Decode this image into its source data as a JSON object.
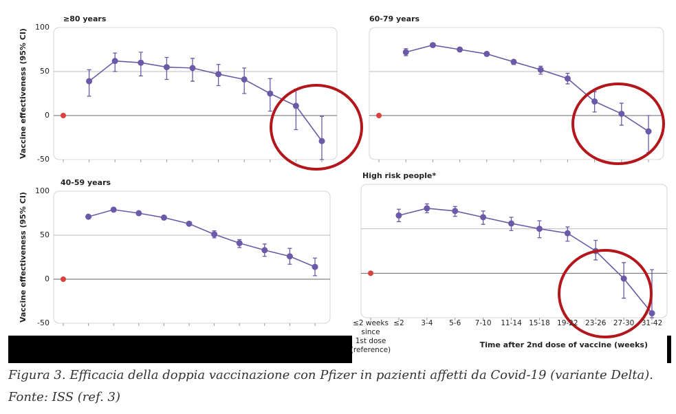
{
  "chart_data": [
    {
      "type": "errorline",
      "title": "≥80 years",
      "y_label": "Vaccine effectiveness (95% CI)",
      "values": [
        0,
        39,
        62,
        60,
        55,
        54,
        47,
        41,
        25,
        11,
        -29
      ],
      "lower": [
        null,
        22,
        50,
        45,
        41,
        39,
        34,
        25,
        5,
        -16,
        -50
      ],
      "upper": [
        null,
        52,
        71,
        72,
        66,
        65,
        58,
        54,
        42,
        30,
        -1
      ],
      "ylim": [
        -50,
        100
      ],
      "yticks": [
        100,
        50,
        0,
        -50
      ],
      "tick_labels": true,
      "color": "#6a5aa8",
      "reference_color": "#d8433e"
    },
    {
      "type": "errorline",
      "title": "60-79 years",
      "values": [
        0,
        72,
        80,
        75,
        70,
        61,
        52,
        42,
        16,
        2,
        -18
      ],
      "lower": [
        null,
        68,
        78,
        73,
        68,
        58,
        47,
        36,
        4,
        -11,
        -42
      ],
      "upper": [
        null,
        76,
        82,
        77,
        72,
        63,
        56,
        48,
        27,
        14,
        0
      ],
      "ylim": [
        -50,
        100
      ],
      "yticks": [
        100,
        50,
        0,
        -50
      ],
      "tick_labels": false,
      "color": "#6a5aa8",
      "reference_color": "#d8433e"
    },
    {
      "type": "errorline",
      "title": "40-59 years",
      "y_label": "Vaccine effectiveness (95% CI)",
      "values": [
        0,
        71,
        79,
        75,
        70,
        63,
        51,
        41,
        33,
        26,
        14
      ],
      "lower": [
        null,
        69,
        78,
        73,
        68,
        61,
        47,
        36,
        26,
        17,
        4
      ],
      "upper": [
        null,
        73,
        81,
        76,
        71,
        65,
        55,
        45,
        40,
        35,
        24
      ],
      "ylim": [
        -50,
        100
      ],
      "yticks": [
        100,
        50,
        0,
        -50
      ],
      "tick_labels": true,
      "color": "#6a5aa8",
      "reference_color": "#d8433e"
    },
    {
      "type": "errorline",
      "title": "High risk people*",
      "x_label": "Time after 2nd dose of vaccine (weeks)",
      "categories": [
        "≤2 weeks\nsince\n1st dose\n(reference)",
        "≤2",
        "3-4",
        "5-6",
        "7-10",
        "11-14",
        "15-18",
        "19-22",
        "23-26",
        "27-30",
        "31-42"
      ],
      "values": [
        0,
        65,
        73,
        70,
        63,
        56,
        50,
        45,
        25,
        -6,
        -45
      ],
      "lower": [
        null,
        58,
        68,
        64,
        55,
        48,
        40,
        36,
        15,
        -28,
        -50
      ],
      "upper": [
        null,
        72,
        78,
        75,
        70,
        63,
        59,
        52,
        37,
        12,
        4
      ],
      "ylim": [
        -50,
        100
      ],
      "yticks": [
        100,
        50,
        0,
        -50
      ],
      "tick_labels": false,
      "color": "#6a5aa8",
      "reference_color": "#d8433e"
    }
  ],
  "caption": "Figura 3. Efficacia della doppia vaccinazione con Pfizer in pazienti affetti da Covid-19 (variante Delta). Fonte: ISS (ref. 3)"
}
